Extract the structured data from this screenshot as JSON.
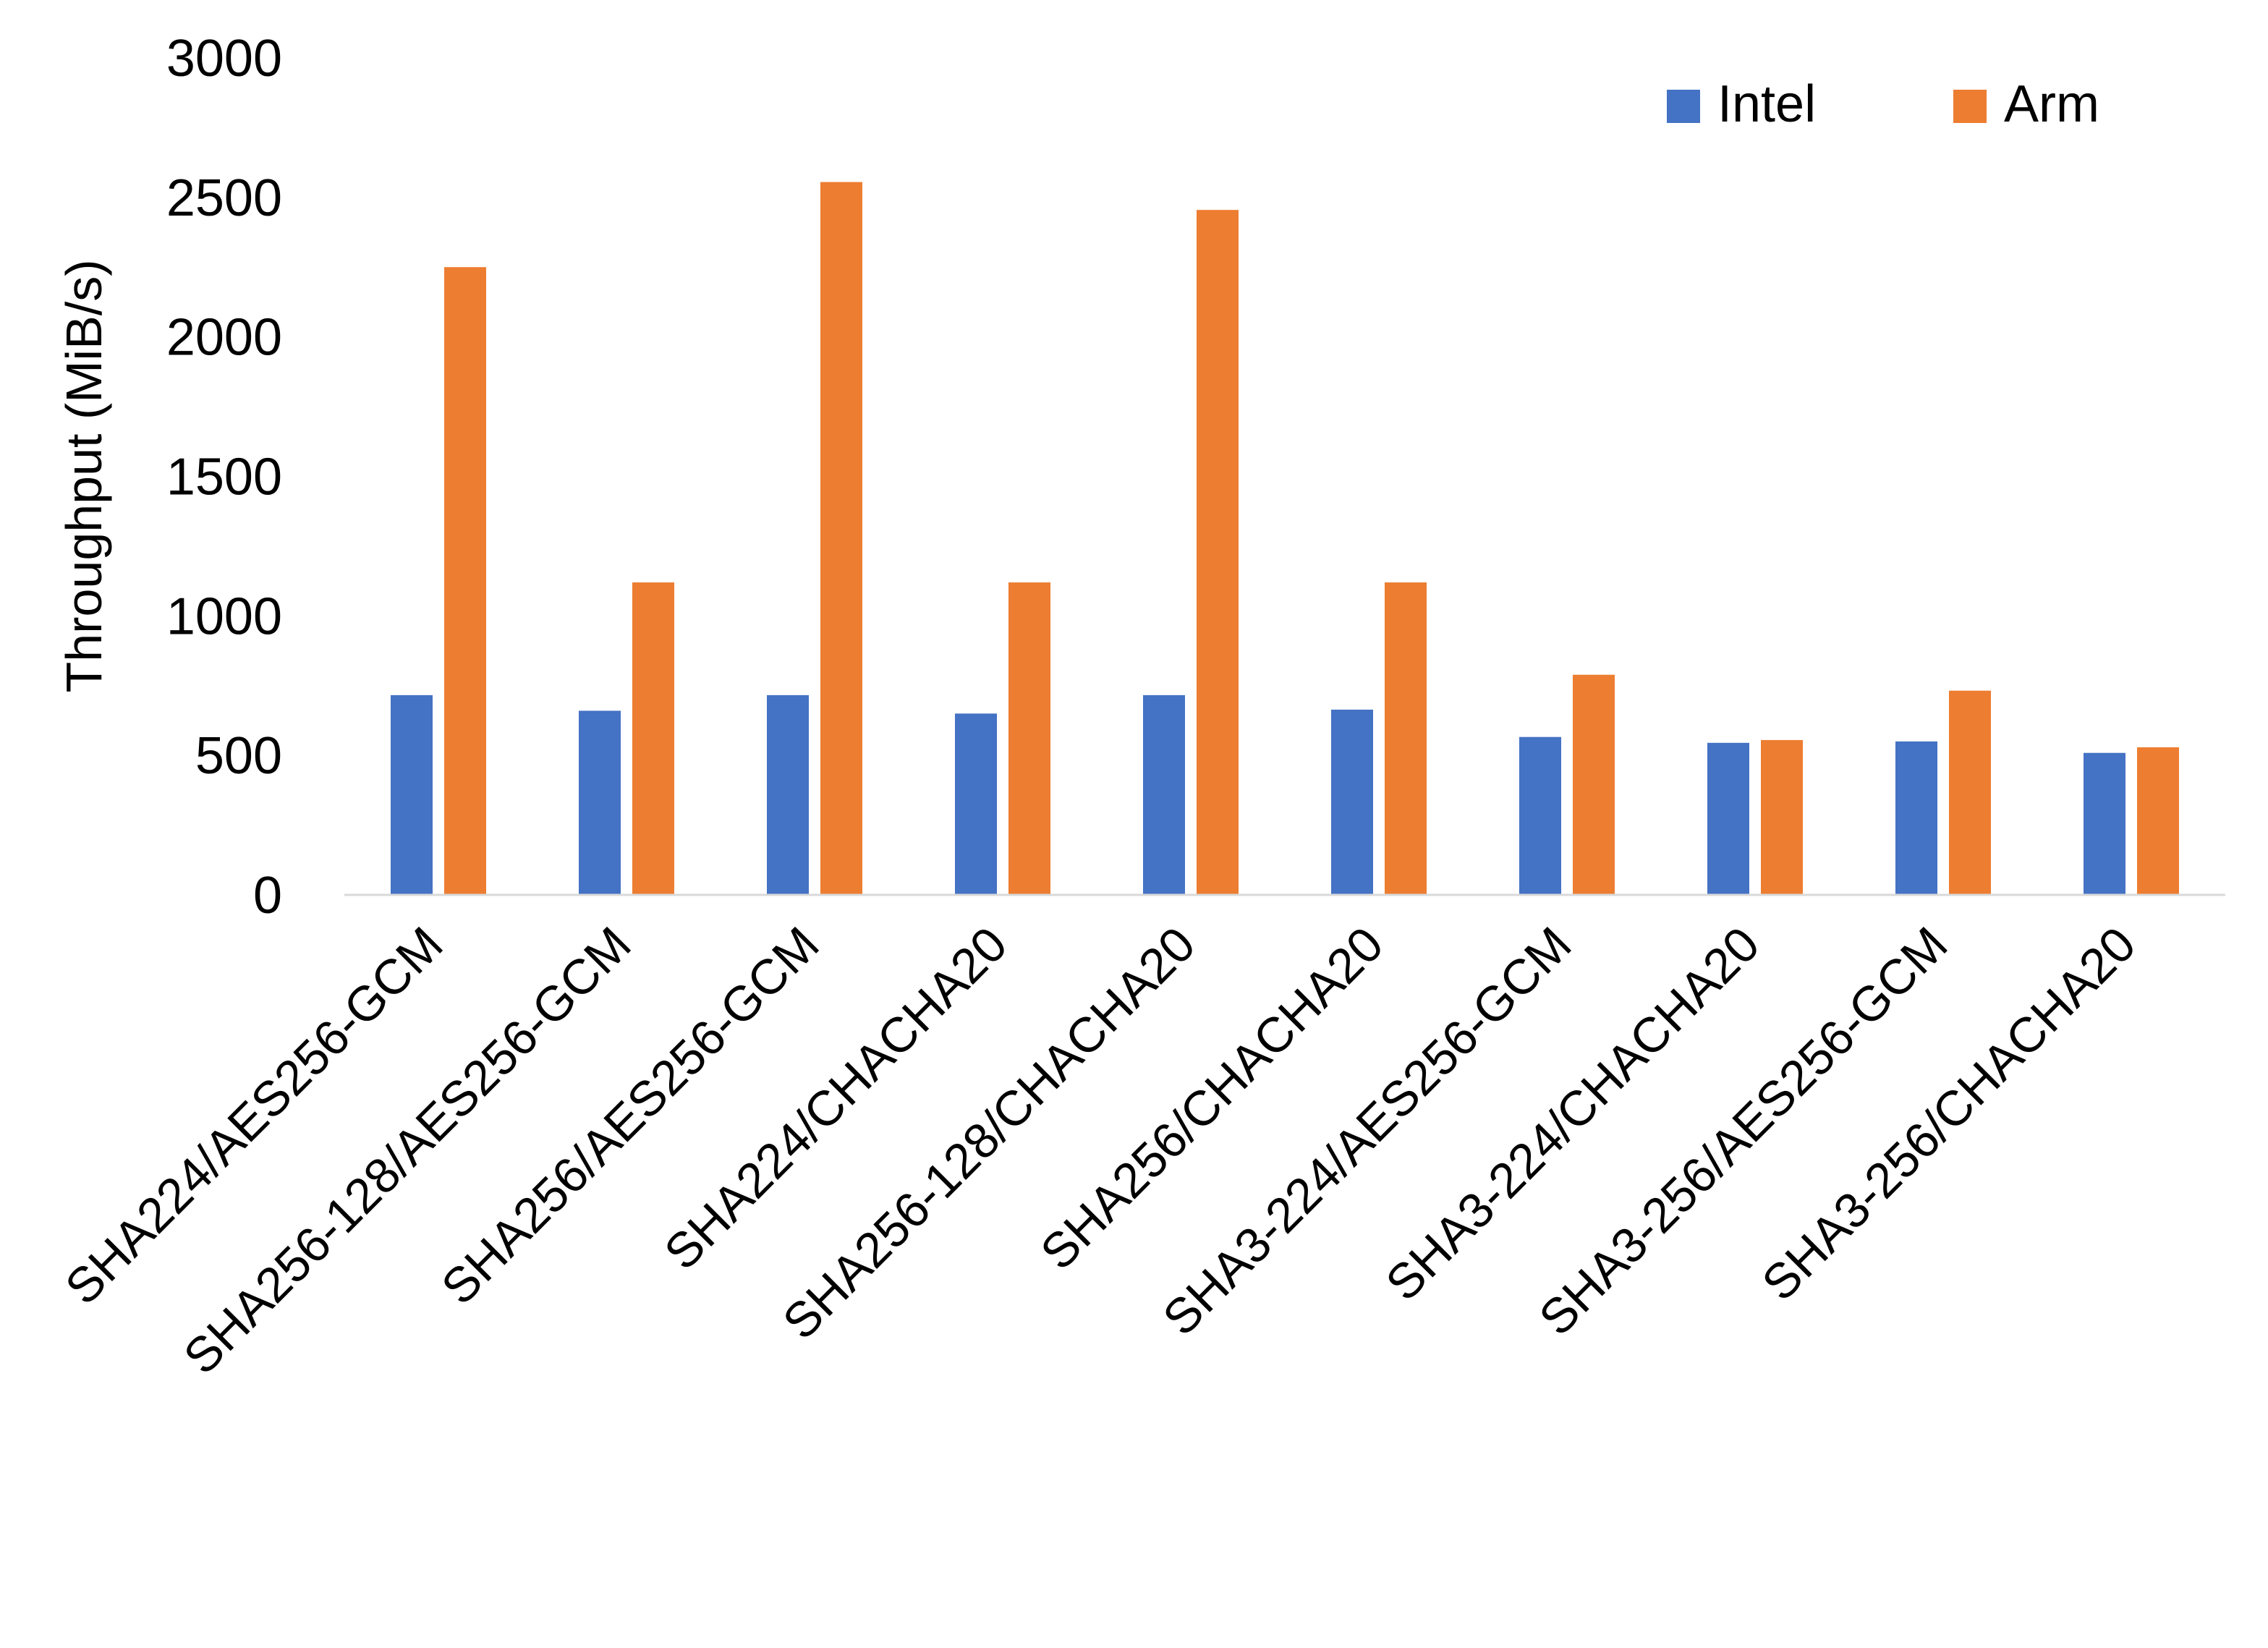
{
  "chart_data": {
    "type": "bar",
    "title": "",
    "xlabel": "",
    "ylabel": "Throughput (MiB/s)",
    "ylim": [
      0,
      3000
    ],
    "yticks": [
      0,
      500,
      1000,
      1500,
      2000,
      2500,
      3000
    ],
    "grid": false,
    "legend_position": "top-right",
    "categories": [
      "SHA224/AES256-GCM",
      "SHA256-128/AES256-GCM",
      "SHA256/AES256-GCM",
      "SHA224/CHACHA20",
      "SHA256-128/CHACHA20",
      "SHA256/CHACHA20",
      "SHA3-224/AES256-GCM",
      "SHA3-224/CHACHA20",
      "SHA3-256/AES256-GCM",
      "SHA3-256/CHACHA20"
    ],
    "series": [
      {
        "name": "Intel",
        "color": "#4472C4",
        "values": [
          716,
          660,
          716,
          650,
          716,
          664,
          566,
          545,
          550,
          509
        ]
      },
      {
        "name": "Arm",
        "color": "#ED7D31",
        "values": [
          2250,
          1120,
          2555,
          1120,
          2455,
          1120,
          789,
          555,
          732,
          529
        ]
      }
    ]
  }
}
